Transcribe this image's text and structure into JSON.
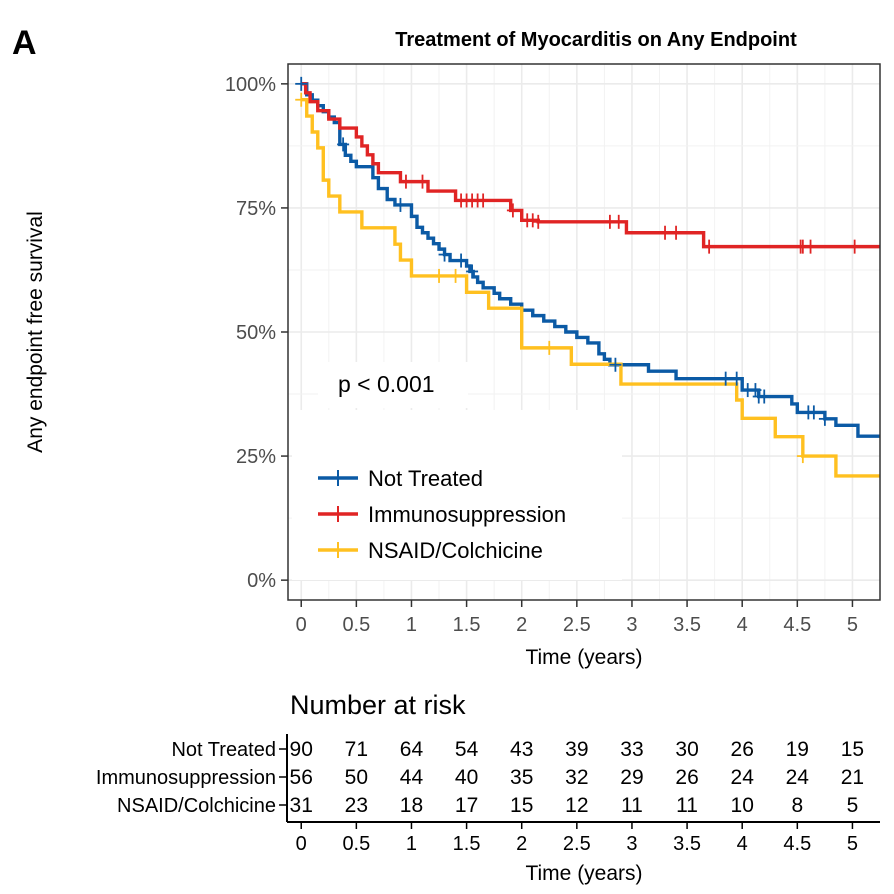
{
  "panel_label": "A",
  "chart_data": {
    "type": "line",
    "subtype": "kaplan-meier",
    "title": "Treatment of Myocarditis on Any Endpoint",
    "xlabel": "Time (years)",
    "ylabel": "Any endpoint free survival",
    "xlim": [
      -0.12,
      5.25
    ],
    "ylim": [
      -0.04,
      1.04
    ],
    "x_ticks": [
      0,
      0.5,
      1,
      1.5,
      2,
      2.5,
      3,
      3.5,
      4,
      4.5,
      5
    ],
    "x_tick_labels": [
      "0",
      "0.5",
      "1",
      "1.5",
      "2",
      "2.5",
      "3",
      "3.5",
      "4",
      "4.5",
      "5"
    ],
    "y_ticks": [
      0,
      0.25,
      0.5,
      0.75,
      1
    ],
    "y_tick_labels": [
      "0%",
      "25%",
      "50%",
      "75%",
      "100%"
    ],
    "grid": true,
    "legend_position": "bottom-left",
    "annotation": "p < 0.001",
    "series": [
      {
        "name": "Not Treated",
        "color": "#0B5AA5",
        "steps": [
          [
            0,
            1.0
          ],
          [
            0.05,
            0.978
          ],
          [
            0.1,
            0.967
          ],
          [
            0.15,
            0.956
          ],
          [
            0.2,
            0.944
          ],
          [
            0.25,
            0.933
          ],
          [
            0.3,
            0.922
          ],
          [
            0.35,
            0.878
          ],
          [
            0.4,
            0.856
          ],
          [
            0.45,
            0.844
          ],
          [
            0.5,
            0.833
          ],
          [
            0.65,
            0.811
          ],
          [
            0.7,
            0.789
          ],
          [
            0.78,
            0.767
          ],
          [
            0.85,
            0.756
          ],
          [
            1.0,
            0.733
          ],
          [
            1.05,
            0.711
          ],
          [
            1.1,
            0.7
          ],
          [
            1.15,
            0.689
          ],
          [
            1.2,
            0.678
          ],
          [
            1.25,
            0.667
          ],
          [
            1.3,
            0.656
          ],
          [
            1.35,
            0.644
          ],
          [
            1.5,
            0.633
          ],
          [
            1.53,
            0.622
          ],
          [
            1.56,
            0.611
          ],
          [
            1.6,
            0.6
          ],
          [
            1.65,
            0.589
          ],
          [
            1.75,
            0.578
          ],
          [
            1.8,
            0.567
          ],
          [
            1.9,
            0.556
          ],
          [
            2.0,
            0.544
          ],
          [
            2.1,
            0.533
          ],
          [
            2.2,
            0.522
          ],
          [
            2.3,
            0.511
          ],
          [
            2.4,
            0.5
          ],
          [
            2.5,
            0.489
          ],
          [
            2.6,
            0.478
          ],
          [
            2.7,
            0.456
          ],
          [
            2.75,
            0.445
          ],
          [
            2.8,
            0.434
          ],
          [
            3.15,
            0.421
          ],
          [
            3.4,
            0.406
          ],
          [
            4.0,
            0.383
          ],
          [
            4.15,
            0.37
          ],
          [
            4.45,
            0.355
          ],
          [
            4.5,
            0.338
          ],
          [
            4.75,
            0.325
          ],
          [
            4.85,
            0.312
          ],
          [
            5.05,
            0.29
          ],
          [
            5.25,
            0.29
          ]
        ],
        "censor_times": [
          0,
          0.38,
          0.9,
          1.3,
          1.45,
          1.55,
          2.85,
          3.85,
          3.95,
          4.05,
          4.12,
          4.15,
          4.2,
          4.6,
          4.65,
          4.75
        ]
      },
      {
        "name": "Immunosuppression",
        "color": "#E02424",
        "steps": [
          [
            0,
            1.0
          ],
          [
            0.04,
            0.982
          ],
          [
            0.08,
            0.964
          ],
          [
            0.15,
            0.946
          ],
          [
            0.25,
            0.929
          ],
          [
            0.35,
            0.911
          ],
          [
            0.5,
            0.893
          ],
          [
            0.55,
            0.875
          ],
          [
            0.6,
            0.857
          ],
          [
            0.65,
            0.839
          ],
          [
            0.7,
            0.821
          ],
          [
            0.9,
            0.803
          ],
          [
            1.15,
            0.784
          ],
          [
            1.4,
            0.765
          ],
          [
            1.9,
            0.745
          ],
          [
            2.0,
            0.725
          ],
          [
            2.15,
            0.722
          ],
          [
            2.95,
            0.7
          ],
          [
            3.65,
            0.672
          ],
          [
            5.25,
            0.672
          ]
        ],
        "censor_times": [
          0.95,
          1.1,
          1.45,
          1.5,
          1.55,
          1.6,
          1.65,
          1.92,
          2.05,
          2.1,
          2.15,
          2.8,
          2.88,
          3.3,
          3.4,
          3.7,
          4.53,
          4.55,
          4.62,
          5.02
        ]
      },
      {
        "name": "NSAID/Colchicine",
        "color": "#FFC020",
        "steps": [
          [
            0,
            0.968
          ],
          [
            0.05,
            0.935
          ],
          [
            0.1,
            0.903
          ],
          [
            0.15,
            0.871
          ],
          [
            0.2,
            0.806
          ],
          [
            0.25,
            0.774
          ],
          [
            0.35,
            0.742
          ],
          [
            0.55,
            0.71
          ],
          [
            0.85,
            0.677
          ],
          [
            0.9,
            0.645
          ],
          [
            1.0,
            0.613
          ],
          [
            1.5,
            0.58
          ],
          [
            1.7,
            0.548
          ],
          [
            2.0,
            0.468
          ],
          [
            2.45,
            0.435
          ],
          [
            2.9,
            0.395
          ],
          [
            3.95,
            0.363
          ],
          [
            4.0,
            0.326
          ],
          [
            4.3,
            0.289
          ],
          [
            4.55,
            0.25
          ],
          [
            4.85,
            0.21
          ],
          [
            5.25,
            0.21
          ]
        ],
        "censor_times": [
          0,
          1.25,
          1.4,
          2.25,
          4.55
        ]
      }
    ]
  },
  "risk_table": {
    "title": "Number at risk",
    "xlabel": "Time (years)",
    "times": [
      "0",
      "0.5",
      "1",
      "1.5",
      "2",
      "2.5",
      "3",
      "3.5",
      "4",
      "4.5",
      "5"
    ],
    "rows": [
      {
        "label": "Not Treated",
        "values": [
          "90",
          "71",
          "64",
          "54",
          "43",
          "39",
          "33",
          "30",
          "26",
          "19",
          "15"
        ]
      },
      {
        "label": "Immunosuppression",
        "values": [
          "56",
          "50",
          "44",
          "40",
          "35",
          "32",
          "29",
          "26",
          "24",
          "24",
          "21"
        ]
      },
      {
        "label": "NSAID/Colchicine",
        "values": [
          "31",
          "23",
          "18",
          "17",
          "15",
          "12",
          "11",
          "11",
          "10",
          "8",
          "5"
        ]
      }
    ]
  }
}
